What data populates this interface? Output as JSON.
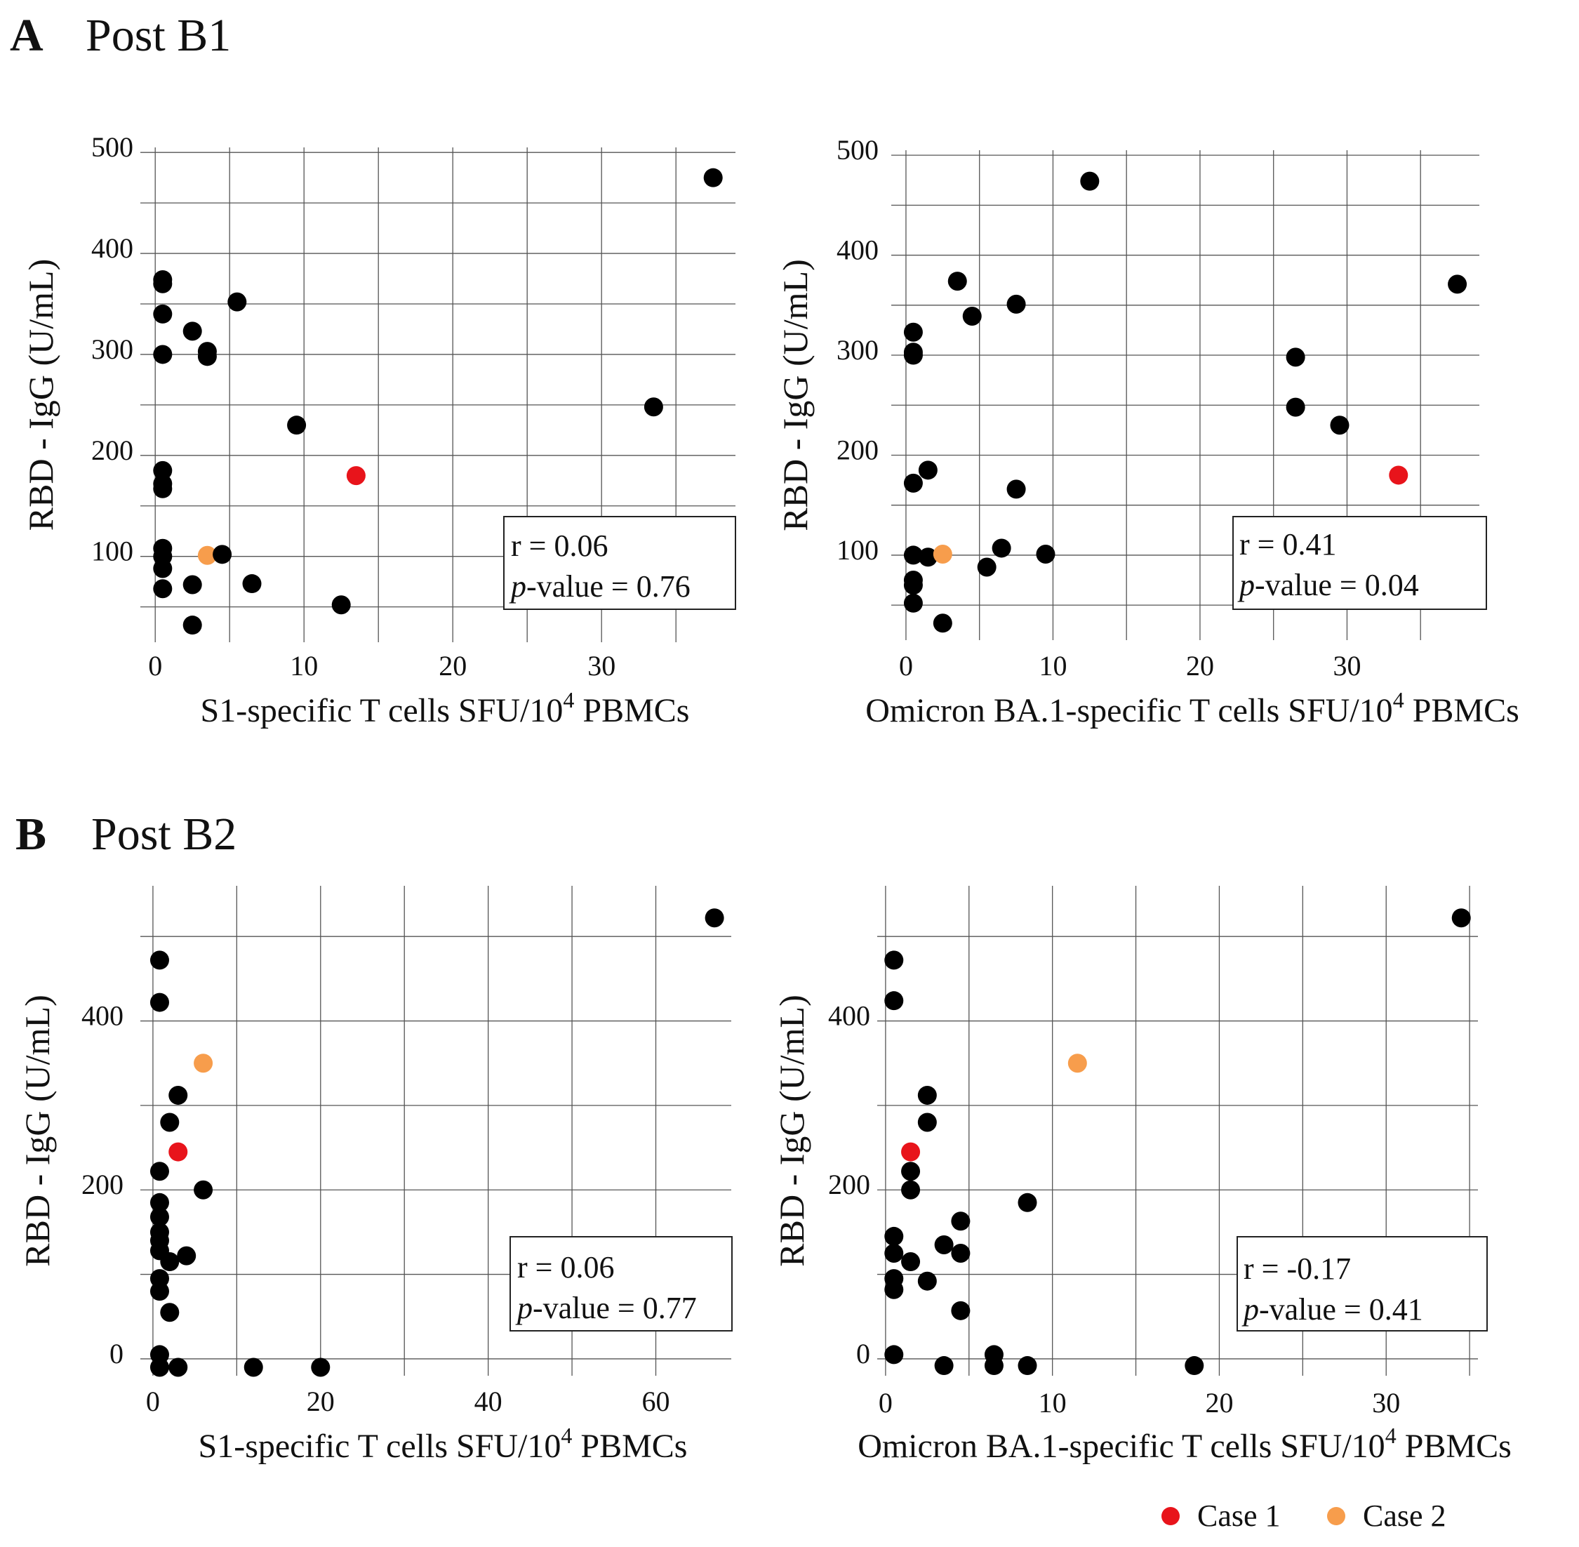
{
  "panels": [
    {
      "letter": "A",
      "title": "Post B1"
    },
    {
      "letter": "B",
      "title": "Post B2"
    }
  ],
  "legend": [
    {
      "label": "Case 1",
      "color": "#e8141b"
    },
    {
      "label": "Case 2",
      "color": "#f79d4c"
    }
  ],
  "chart_data": [
    {
      "type": "scatter",
      "panel": "A",
      "xlabel": "S1-specific T cells SFU/10^4 PBMCs",
      "ylabel": "RBD - IgG (U/mL)",
      "xlim": [
        -1,
        39
      ],
      "ylim": [
        15,
        505
      ],
      "xticks": [
        0,
        10,
        20,
        30
      ],
      "yticks": [
        100,
        200,
        300,
        400,
        500
      ],
      "x_gridlines": [
        0,
        5,
        10,
        15,
        20,
        25,
        30,
        35
      ],
      "y_gridlines": [
        50,
        100,
        150,
        200,
        250,
        300,
        350,
        400,
        450,
        500
      ],
      "stats": {
        "r": "r = 0.06",
        "p": "= 0.76"
      },
      "points": [
        {
          "x": 37.5,
          "y": 475,
          "group": "other"
        },
        {
          "x": 0.5,
          "y": 374,
          "group": "other"
        },
        {
          "x": 0.5,
          "y": 370,
          "group": "other"
        },
        {
          "x": 0.5,
          "y": 340,
          "group": "other"
        },
        {
          "x": 5.5,
          "y": 352,
          "group": "other"
        },
        {
          "x": 2.5,
          "y": 323,
          "group": "other"
        },
        {
          "x": 3.5,
          "y": 303,
          "group": "other"
        },
        {
          "x": 3.5,
          "y": 298,
          "group": "other"
        },
        {
          "x": 0.5,
          "y": 300,
          "group": "other"
        },
        {
          "x": 33.5,
          "y": 248,
          "group": "other"
        },
        {
          "x": 9.5,
          "y": 230,
          "group": "other"
        },
        {
          "x": 13.5,
          "y": 180,
          "group": "case1"
        },
        {
          "x": 0.5,
          "y": 185,
          "group": "other"
        },
        {
          "x": 0.5,
          "y": 172,
          "group": "other"
        },
        {
          "x": 0.5,
          "y": 167,
          "group": "other"
        },
        {
          "x": 0.5,
          "y": 108,
          "group": "other"
        },
        {
          "x": 0.5,
          "y": 100,
          "group": "other"
        },
        {
          "x": 0.5,
          "y": 88,
          "group": "other"
        },
        {
          "x": 3.5,
          "y": 101,
          "group": "case2"
        },
        {
          "x": 4.5,
          "y": 102,
          "group": "other"
        },
        {
          "x": 2.5,
          "y": 72,
          "group": "other"
        },
        {
          "x": 6.5,
          "y": 73,
          "group": "other"
        },
        {
          "x": 0.5,
          "y": 68,
          "group": "other"
        },
        {
          "x": 12.5,
          "y": 52,
          "group": "other"
        },
        {
          "x": 2.5,
          "y": 32,
          "group": "other"
        }
      ]
    },
    {
      "type": "scatter",
      "panel": "A",
      "xlabel": "Omicron BA.1-specific T cells SFU/10^4 PBMCs",
      "ylabel": "RBD - IgG (U/mL)",
      "xlim": [
        -1,
        39
      ],
      "ylim": [
        15,
        505
      ],
      "xticks": [
        0,
        10,
        20,
        30
      ],
      "yticks": [
        100,
        200,
        300,
        400,
        500
      ],
      "x_gridlines": [
        0,
        5,
        10,
        15,
        20,
        25,
        30,
        35
      ],
      "y_gridlines": [
        50,
        100,
        150,
        200,
        250,
        300,
        350,
        400,
        450,
        500
      ],
      "stats": {
        "r": "r = 0.41",
        "p": "= 0.04"
      },
      "points": [
        {
          "x": 12.5,
          "y": 474,
          "group": "other"
        },
        {
          "x": 3.5,
          "y": 374,
          "group": "other"
        },
        {
          "x": 37.5,
          "y": 371,
          "group": "other"
        },
        {
          "x": 7.5,
          "y": 351,
          "group": "other"
        },
        {
          "x": 4.5,
          "y": 339,
          "group": "other"
        },
        {
          "x": 0.5,
          "y": 323,
          "group": "other"
        },
        {
          "x": 0.5,
          "y": 303,
          "group": "other"
        },
        {
          "x": 0.5,
          "y": 300,
          "group": "other"
        },
        {
          "x": 26.5,
          "y": 298,
          "group": "other"
        },
        {
          "x": 26.5,
          "y": 248,
          "group": "other"
        },
        {
          "x": 29.5,
          "y": 230,
          "group": "other"
        },
        {
          "x": 33.5,
          "y": 180,
          "group": "case1"
        },
        {
          "x": 1.5,
          "y": 185,
          "group": "other"
        },
        {
          "x": 0.5,
          "y": 172,
          "group": "other"
        },
        {
          "x": 7.5,
          "y": 166,
          "group": "other"
        },
        {
          "x": 6.5,
          "y": 107,
          "group": "other"
        },
        {
          "x": 0.5,
          "y": 100,
          "group": "other"
        },
        {
          "x": 1.5,
          "y": 98,
          "group": "other"
        },
        {
          "x": 2.5,
          "y": 101,
          "group": "case2"
        },
        {
          "x": 9.5,
          "y": 101,
          "group": "other"
        },
        {
          "x": 5.5,
          "y": 88,
          "group": "other"
        },
        {
          "x": 0.5,
          "y": 75,
          "group": "other"
        },
        {
          "x": 0.5,
          "y": 70,
          "group": "other"
        },
        {
          "x": 0.5,
          "y": 52,
          "group": "other"
        },
        {
          "x": 2.5,
          "y": 32,
          "group": "other"
        }
      ]
    },
    {
      "type": "scatter",
      "panel": "B",
      "xlabel": "S1-specific T cells SFU/10^4 PBMCs",
      "ylabel": "RBD - IgG (U/mL)",
      "xlim": [
        -1.5,
        69
      ],
      "ylim": [
        -20,
        560
      ],
      "xticks": [
        0,
        20,
        40,
        60
      ],
      "yticks": [
        0,
        200,
        400
      ],
      "x_gridlines": [
        0,
        10,
        20,
        30,
        40,
        50,
        60
      ],
      "y_gridlines": [
        0,
        100,
        200,
        300,
        400,
        500
      ],
      "stats": {
        "r": "r = 0.06",
        "p": "= 0.77"
      },
      "points": [
        {
          "x": 67,
          "y": 522,
          "group": "other"
        },
        {
          "x": 0.8,
          "y": 472,
          "group": "other"
        },
        {
          "x": 0.8,
          "y": 422,
          "group": "other"
        },
        {
          "x": 6,
          "y": 350,
          "group": "case2"
        },
        {
          "x": 3,
          "y": 312,
          "group": "other"
        },
        {
          "x": 2,
          "y": 280,
          "group": "other"
        },
        {
          "x": 3,
          "y": 245,
          "group": "case1"
        },
        {
          "x": 0.8,
          "y": 222,
          "group": "other"
        },
        {
          "x": 6,
          "y": 200,
          "group": "other"
        },
        {
          "x": 0.8,
          "y": 185,
          "group": "other"
        },
        {
          "x": 0.8,
          "y": 168,
          "group": "other"
        },
        {
          "x": 0.8,
          "y": 150,
          "group": "other"
        },
        {
          "x": 0.8,
          "y": 140,
          "group": "other"
        },
        {
          "x": 0.8,
          "y": 128,
          "group": "other"
        },
        {
          "x": 2,
          "y": 115,
          "group": "other"
        },
        {
          "x": 4,
          "y": 122,
          "group": "other"
        },
        {
          "x": 0.8,
          "y": 95,
          "group": "other"
        },
        {
          "x": 0.8,
          "y": 80,
          "group": "other"
        },
        {
          "x": 2,
          "y": 55,
          "group": "other"
        },
        {
          "x": 0.8,
          "y": 5,
          "group": "other"
        },
        {
          "x": 0.8,
          "y": -10,
          "group": "other"
        },
        {
          "x": 3,
          "y": -10,
          "group": "other"
        },
        {
          "x": 12,
          "y": -10,
          "group": "other"
        },
        {
          "x": 20,
          "y": -10,
          "group": "other"
        }
      ]
    },
    {
      "type": "scatter",
      "panel": "B",
      "xlabel": "Omicron BA.1-specific T cells SFU/10^4 PBMCs",
      "ylabel": "RBD - IgG (U/mL)",
      "xlim": [
        -0.5,
        35.5
      ],
      "ylim": [
        -20,
        560
      ],
      "xticks": [
        0,
        10,
        20,
        30
      ],
      "yticks": [
        0,
        200,
        400
      ],
      "x_gridlines": [
        0,
        5,
        10,
        15,
        20,
        25,
        30,
        35
      ],
      "y_gridlines": [
        0,
        100,
        200,
        300,
        400,
        500
      ],
      "stats": {
        "r": "r = -0.17",
        "p": "= 0.41"
      },
      "points": [
        {
          "x": 34.5,
          "y": 522,
          "group": "other"
        },
        {
          "x": 0.5,
          "y": 472,
          "group": "other"
        },
        {
          "x": 0.5,
          "y": 424,
          "group": "other"
        },
        {
          "x": 11.5,
          "y": 350,
          "group": "case2"
        },
        {
          "x": 2.5,
          "y": 312,
          "group": "other"
        },
        {
          "x": 2.5,
          "y": 280,
          "group": "other"
        },
        {
          "x": 1.5,
          "y": 245,
          "group": "case1"
        },
        {
          "x": 1.5,
          "y": 222,
          "group": "other"
        },
        {
          "x": 1.5,
          "y": 200,
          "group": "other"
        },
        {
          "x": 8.5,
          "y": 185,
          "group": "other"
        },
        {
          "x": 4.5,
          "y": 163,
          "group": "other"
        },
        {
          "x": 0.5,
          "y": 145,
          "group": "other"
        },
        {
          "x": 3.5,
          "y": 135,
          "group": "other"
        },
        {
          "x": 0.5,
          "y": 125,
          "group": "other"
        },
        {
          "x": 4.5,
          "y": 125,
          "group": "other"
        },
        {
          "x": 1.5,
          "y": 115,
          "group": "other"
        },
        {
          "x": 0.5,
          "y": 95,
          "group": "other"
        },
        {
          "x": 2.5,
          "y": 92,
          "group": "other"
        },
        {
          "x": 0.5,
          "y": 82,
          "group": "other"
        },
        {
          "x": 4.5,
          "y": 57,
          "group": "other"
        },
        {
          "x": 0.5,
          "y": 5,
          "group": "other"
        },
        {
          "x": 6.5,
          "y": 5,
          "group": "other"
        },
        {
          "x": 3.5,
          "y": -8,
          "group": "other"
        },
        {
          "x": 6.5,
          "y": -8,
          "group": "other"
        },
        {
          "x": 8.5,
          "y": -8,
          "group": "other"
        },
        {
          "x": 18.5,
          "y": -8,
          "group": "other"
        }
      ]
    }
  ]
}
